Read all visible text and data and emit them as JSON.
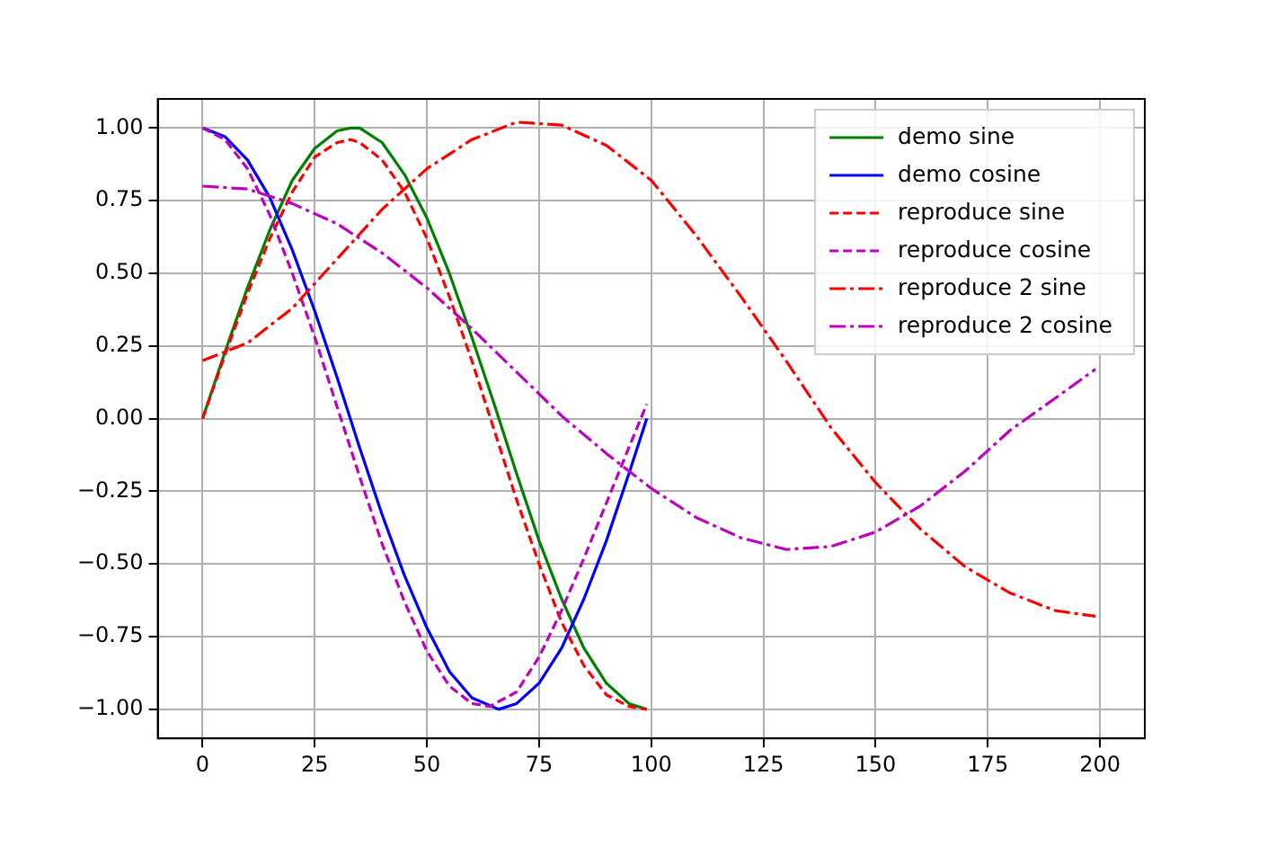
{
  "chart_data": {
    "type": "line",
    "xlim": [
      -10,
      210
    ],
    "ylim": [
      -1.1,
      1.1
    ],
    "xticks": [
      0,
      25,
      50,
      75,
      100,
      125,
      150,
      175,
      200
    ],
    "yticks": [
      {
        "value": -1,
        "label": "−1.00"
      },
      {
        "value": -0.75,
        "label": "−0.75"
      },
      {
        "value": -0.5,
        "label": "−0.50"
      },
      {
        "value": -0.25,
        "label": "−0.25"
      },
      {
        "value": 0,
        "label": "0.00"
      },
      {
        "value": 0.25,
        "label": "0.25"
      },
      {
        "value": 0.5,
        "label": "0.50"
      },
      {
        "value": 0.75,
        "label": "0.75"
      },
      {
        "value": 1,
        "label": "1.00"
      }
    ],
    "grid": true,
    "legend": "top right",
    "marker": "none",
    "series": [
      {
        "name": "demo sine",
        "color": "#008000",
        "line_style": "solid",
        "x": [
          0,
          5,
          10,
          15,
          20,
          25,
          30,
          33,
          35,
          40,
          45,
          50,
          55,
          60,
          65,
          70,
          75,
          80,
          85,
          90,
          95,
          99
        ],
        "values": [
          0,
          0.23,
          0.45,
          0.65,
          0.82,
          0.93,
          0.99,
          1,
          1,
          0.95,
          0.84,
          0.69,
          0.5,
          0.28,
          0.05,
          -0.19,
          -0.42,
          -0.62,
          -0.79,
          -0.91,
          -0.98,
          -1
        ]
      },
      {
        "name": "demo cosine",
        "color": "#0000ff",
        "line_style": "solid",
        "x": [
          0,
          5,
          10,
          15,
          20,
          25,
          30,
          35,
          40,
          45,
          50,
          55,
          60,
          66,
          70,
          75,
          80,
          85,
          90,
          95,
          99
        ],
        "values": [
          1,
          0.97,
          0.89,
          0.76,
          0.58,
          0.37,
          0.14,
          -0.1,
          -0.33,
          -0.54,
          -0.72,
          -0.87,
          -0.96,
          -1,
          -0.98,
          -0.91,
          -0.79,
          -0.62,
          -0.42,
          -0.19,
          0
        ]
      },
      {
        "name": "reproduce sine",
        "color": "#ff0000",
        "line_style": "dashed",
        "x": [
          0,
          5,
          10,
          15,
          20,
          25,
          30,
          33,
          35,
          40,
          45,
          50,
          55,
          60,
          65,
          70,
          75,
          80,
          85,
          90,
          95,
          99
        ],
        "values": [
          0,
          0.22,
          0.43,
          0.62,
          0.78,
          0.9,
          0.95,
          0.96,
          0.95,
          0.89,
          0.78,
          0.62,
          0.42,
          0.2,
          -0.04,
          -0.28,
          -0.5,
          -0.7,
          -0.85,
          -0.95,
          -0.99,
          -1
        ]
      },
      {
        "name": "reproduce cosine",
        "color": "#bf00bf",
        "line_style": "dashed",
        "x": [
          0,
          5,
          10,
          15,
          20,
          25,
          30,
          35,
          40,
          45,
          50,
          55,
          60,
          64,
          70,
          75,
          80,
          85,
          90,
          95,
          99
        ],
        "values": [
          1,
          0.96,
          0.86,
          0.7,
          0.5,
          0.28,
          0.04,
          -0.2,
          -0.43,
          -0.63,
          -0.8,
          -0.92,
          -0.98,
          -0.99,
          -0.94,
          -0.82,
          -0.66,
          -0.48,
          -0.29,
          -0.1,
          0.05
        ]
      },
      {
        "name": "reproduce 2 sine",
        "color": "#ff0000",
        "line_style": "dashdot",
        "x": [
          0,
          10,
          20,
          30,
          40,
          50,
          60,
          70,
          80,
          90,
          100,
          110,
          120,
          130,
          140,
          150,
          160,
          170,
          180,
          190,
          199
        ],
        "values": [
          0.2,
          0.26,
          0.38,
          0.55,
          0.72,
          0.86,
          0.96,
          1.02,
          1.01,
          0.94,
          0.82,
          0.63,
          0.42,
          0.2,
          -0.03,
          -0.22,
          -0.38,
          -0.51,
          -0.6,
          -0.66,
          -0.68
        ]
      },
      {
        "name": "reproduce 2 cosine",
        "color": "#bf00bf",
        "line_style": "dashdot",
        "x": [
          0,
          10,
          20,
          30,
          40,
          50,
          60,
          70,
          80,
          90,
          100,
          110,
          120,
          130,
          140,
          150,
          160,
          170,
          180,
          190,
          199
        ],
        "values": [
          0.8,
          0.79,
          0.74,
          0.67,
          0.57,
          0.45,
          0.31,
          0.16,
          0.01,
          -0.12,
          -0.24,
          -0.34,
          -0.41,
          -0.45,
          -0.44,
          -0.39,
          -0.3,
          -0.18,
          -0.04,
          0.07,
          0.17
        ]
      }
    ]
  }
}
